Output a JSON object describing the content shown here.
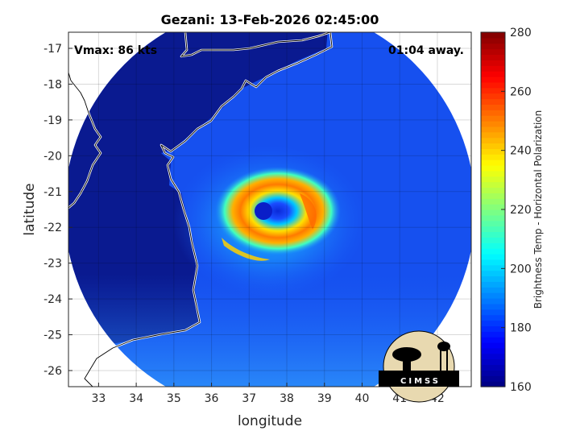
{
  "chart_data": {
    "type": "heatmap",
    "title": "Gezani: 13-Feb-2026 02:45:00",
    "xlabel": "longitude",
    "ylabel": "latitude",
    "xlim": [
      32.2,
      42.9
    ],
    "ylim": [
      -26.45,
      -16.55
    ],
    "xticks": [
      33,
      34,
      35,
      36,
      37,
      38,
      39,
      40,
      41,
      42
    ],
    "yticks": [
      -17,
      -18,
      -19,
      -20,
      -21,
      -22,
      -23,
      -24,
      -25,
      -26
    ],
    "grid": true,
    "annotations": {
      "vmax": "Vmax: 86 kts",
      "time_away": "01:04 away."
    },
    "storm_center": {
      "lon": 37.3,
      "lat": -21.5
    },
    "colorbar": {
      "label": "Brightness Temp - Horizontal Polarization",
      "min": 160,
      "max": 280,
      "ticks": [
        160,
        180,
        200,
        220,
        240,
        260,
        280
      ],
      "colormap": "jet"
    },
    "logo_text": "CIMSS"
  }
}
